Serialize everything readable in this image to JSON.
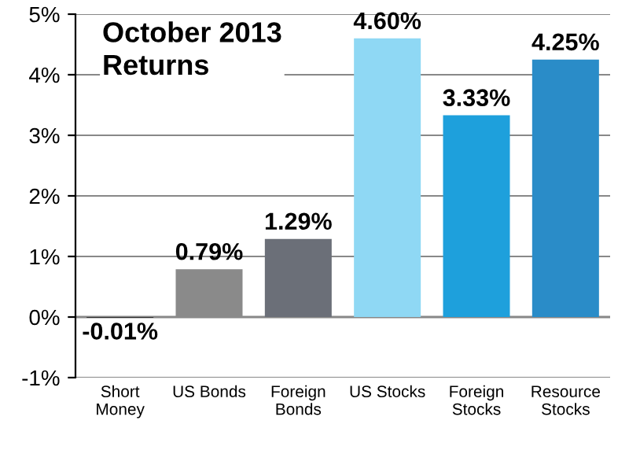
{
  "chart_data": {
    "type": "bar",
    "title": "October 2013\nReturns",
    "categories": [
      "Short\nMoney",
      "US Bonds",
      "Foreign\nBonds",
      "US Stocks",
      "Foreign\nStocks",
      "Resource\nStocks"
    ],
    "values": [
      -0.01,
      0.79,
      1.29,
      4.6,
      3.33,
      4.25
    ],
    "colors": [
      "#101010",
      "#8a8a8a",
      "#6b6f78",
      "#8fd8f4",
      "#1ea0dc",
      "#2a8cc8"
    ],
    "value_labels": [
      "-0.01%",
      "0.79%",
      "1.29%",
      "4.60%",
      "3.33%",
      "4.25%"
    ],
    "ylim": [
      -1,
      5
    ],
    "yticks": [
      {
        "value": -1,
        "label": "-1%"
      },
      {
        "value": 0,
        "label": "0%"
      },
      {
        "value": 1,
        "label": "1%"
      },
      {
        "value": 2,
        "label": "2%"
      },
      {
        "value": 3,
        "label": "3%"
      },
      {
        "value": 4,
        "label": "4%"
      },
      {
        "value": 5,
        "label": "5%"
      }
    ],
    "grid": "y",
    "legend": false
  }
}
